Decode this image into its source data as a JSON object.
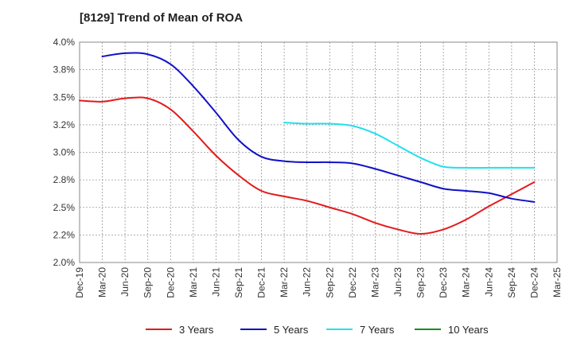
{
  "chart_data": {
    "type": "line",
    "title": "[8129]  Trend of Mean of ROA",
    "xlabel": "",
    "ylabel": "",
    "x_ticks": [
      "Dec-19",
      "Mar-20",
      "Jun-20",
      "Sep-20",
      "Dec-20",
      "Mar-21",
      "Jun-21",
      "Sep-21",
      "Dec-21",
      "Mar-22",
      "Jun-22",
      "Sep-22",
      "Dec-22",
      "Mar-23",
      "Jun-23",
      "Sep-23",
      "Dec-23",
      "Mar-24",
      "Jun-24",
      "Sep-24",
      "Dec-24",
      "Mar-25"
    ],
    "y_ticks": [
      "2.0%",
      "2.2%",
      "2.5%",
      "2.8%",
      "3.0%",
      "3.2%",
      "3.5%",
      "3.8%",
      "4.0%"
    ],
    "ylim": [
      2.0,
      4.0
    ],
    "grid": "dashed",
    "legend_position": "bottom",
    "series": [
      {
        "name": "3 Years",
        "color": "#e31a1c",
        "points": [
          [
            0,
            3.47
          ],
          [
            1,
            3.46
          ],
          [
            2,
            3.49
          ],
          [
            3,
            3.49
          ],
          [
            4,
            3.39
          ],
          [
            5,
            3.19
          ],
          [
            6,
            2.97
          ],
          [
            7,
            2.79
          ],
          [
            8,
            2.65
          ],
          [
            9,
            2.6
          ],
          [
            10,
            2.56
          ],
          [
            11,
            2.5
          ],
          [
            12,
            2.44
          ],
          [
            13,
            2.36
          ],
          [
            14,
            2.3
          ],
          [
            15,
            2.26
          ],
          [
            16,
            2.3
          ],
          [
            17,
            2.39
          ],
          [
            18,
            2.51
          ],
          [
            19,
            2.62
          ],
          [
            20,
            2.73
          ]
        ]
      },
      {
        "name": "5 Years",
        "color": "#1111c8",
        "points": [
          [
            1,
            3.87
          ],
          [
            2,
            3.9
          ],
          [
            3,
            3.89
          ],
          [
            4,
            3.8
          ],
          [
            5,
            3.6
          ],
          [
            6,
            3.36
          ],
          [
            7,
            3.11
          ],
          [
            8,
            2.96
          ],
          [
            9,
            2.92
          ],
          [
            10,
            2.91
          ],
          [
            11,
            2.91
          ],
          [
            12,
            2.9
          ],
          [
            13,
            2.85
          ],
          [
            14,
            2.79
          ],
          [
            15,
            2.73
          ],
          [
            16,
            2.67
          ],
          [
            17,
            2.65
          ],
          [
            18,
            2.63
          ],
          [
            19,
            2.58
          ],
          [
            20,
            2.55
          ]
        ]
      },
      {
        "name": "7 Years",
        "color": "#22e0f0",
        "points": [
          [
            9,
            3.27
          ],
          [
            10,
            3.26
          ],
          [
            11,
            3.26
          ],
          [
            12,
            3.24
          ],
          [
            13,
            3.17
          ],
          [
            14,
            3.06
          ],
          [
            15,
            2.95
          ],
          [
            16,
            2.87
          ],
          [
            17,
            2.86
          ],
          [
            18,
            2.86
          ],
          [
            19,
            2.86
          ],
          [
            20,
            2.86
          ]
        ]
      },
      {
        "name": "10 Years",
        "color": "#1a8c1a",
        "points": []
      }
    ]
  }
}
